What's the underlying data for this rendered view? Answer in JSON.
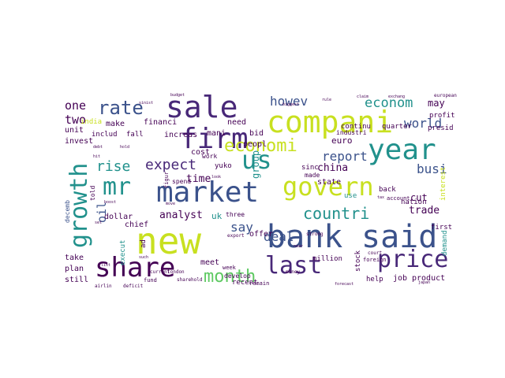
{
  "palette": {
    "light_yellow": "#c8e020",
    "yellow": "#dde318",
    "green": "#5ec962",
    "teal": "#21918c",
    "blue": "#3b528b",
    "deep_blue": "#31446b",
    "dark_purple": "#440154",
    "purple": "#482878"
  },
  "words": [
    {
      "text": "new",
      "size": 46,
      "color": "#c8e020"
    },
    {
      "text": "bank",
      "size": 40,
      "color": "#3b528b"
    },
    {
      "text": "said",
      "size": 40,
      "color": "#3b528b"
    },
    {
      "text": "share",
      "size": 34,
      "color": "#440154"
    },
    {
      "text": "compani",
      "size": 38,
      "color": "#c8e020"
    },
    {
      "text": "sale",
      "size": 38,
      "color": "#482878"
    },
    {
      "text": "firm",
      "size": 36,
      "color": "#482878"
    },
    {
      "text": "market",
      "size": 36,
      "color": "#3b528b"
    },
    {
      "text": "year",
      "size": 36,
      "color": "#21918c"
    },
    {
      "text": "govern",
      "size": 32,
      "color": "#c8e020"
    },
    {
      "text": "us",
      "size": 32,
      "color": "#21918c"
    },
    {
      "text": "price",
      "size": 30,
      "color": "#482878"
    },
    {
      "text": "last",
      "size": 30,
      "color": "#482878"
    },
    {
      "text": "growth",
      "size": 30,
      "color": "#21918c"
    },
    {
      "text": "mr",
      "size": 30,
      "color": "#21918c"
    },
    {
      "text": "month",
      "size": 22,
      "color": "#5ec962"
    },
    {
      "text": "rate",
      "size": 24,
      "color": "#3b528b"
    },
    {
      "text": "economi",
      "size": 22,
      "color": "#c8e020"
    },
    {
      "text": "countri",
      "size": 20,
      "color": "#21918c"
    },
    {
      "text": "expect",
      "size": 18,
      "color": "#482878"
    },
    {
      "text": "rise",
      "size": 18,
      "color": "#21918c"
    },
    {
      "text": "econom",
      "size": 17,
      "color": "#21918c"
    },
    {
      "text": "howev",
      "size": 16,
      "color": "#3b528b"
    },
    {
      "text": "report",
      "size": 16,
      "color": "#3b528b"
    },
    {
      "text": "world",
      "size": 16,
      "color": "#3b528b"
    },
    {
      "text": "deal",
      "size": 16,
      "color": "#3b528b"
    },
    {
      "text": "say",
      "size": 16,
      "color": "#3b528b"
    },
    {
      "text": "busi",
      "size": 16,
      "color": "#3b528b"
    },
    {
      "text": "one",
      "size": 15,
      "color": "#440154"
    },
    {
      "text": "two",
      "size": 15,
      "color": "#440154"
    },
    {
      "text": "may",
      "size": 12,
      "color": "#440154"
    },
    {
      "text": "oil",
      "size": 15,
      "color": "#3b528b"
    },
    {
      "text": "analyst",
      "size": 13,
      "color": "#440154"
    },
    {
      "text": "time",
      "size": 13,
      "color": "#440154"
    },
    {
      "text": "china",
      "size": 13,
      "color": "#440154"
    },
    {
      "text": "trade",
      "size": 13,
      "color": "#440154"
    },
    {
      "text": "group",
      "size": 12,
      "color": "#21918c"
    },
    {
      "text": "cut",
      "size": 12,
      "color": "#440154"
    },
    {
      "text": "uk",
      "size": 11,
      "color": "#21918c"
    },
    {
      "text": "euro",
      "size": 11,
      "color": "#440154"
    },
    {
      "text": "need",
      "size": 10,
      "color": "#440154"
    },
    {
      "text": "bid",
      "size": 10,
      "color": "#440154"
    },
    {
      "text": "financi",
      "size": 10,
      "color": "#440154"
    },
    {
      "text": "make",
      "size": 10,
      "color": "#440154"
    },
    {
      "text": "mani",
      "size": 10,
      "color": "#440154"
    },
    {
      "text": "increas",
      "size": 10,
      "color": "#440154"
    },
    {
      "text": "peopl",
      "size": 10,
      "color": "#440154"
    },
    {
      "text": "cost",
      "size": 10,
      "color": "#440154"
    },
    {
      "text": "unit",
      "size": 10,
      "color": "#440154"
    },
    {
      "text": "invest",
      "size": 10,
      "color": "#440154"
    },
    {
      "text": "includ",
      "size": 9,
      "color": "#440154"
    },
    {
      "text": "fall",
      "size": 9,
      "color": "#440154"
    },
    {
      "text": "sinc",
      "size": 9,
      "color": "#440154"
    },
    {
      "text": "state",
      "size": 10,
      "color": "#440154"
    },
    {
      "text": "yuko",
      "size": 9,
      "color": "#440154"
    },
    {
      "text": "offer",
      "size": 10,
      "color": "#440154"
    },
    {
      "text": "chief",
      "size": 10,
      "color": "#440154"
    },
    {
      "text": "dollar",
      "size": 10,
      "color": "#440154"
    },
    {
      "text": "take",
      "size": 10,
      "color": "#440154"
    },
    {
      "text": "plan",
      "size": 10,
      "color": "#440154"
    },
    {
      "text": "still",
      "size": 10,
      "color": "#440154"
    },
    {
      "text": "meet",
      "size": 10,
      "color": "#440154"
    },
    {
      "text": "recent",
      "size": 9,
      "color": "#440154"
    },
    {
      "text": "job",
      "size": 10,
      "color": "#440154"
    },
    {
      "text": "product",
      "size": 10,
      "color": "#440154"
    },
    {
      "text": "million",
      "size": 9,
      "color": "#440154"
    },
    {
      "text": "stock",
      "size": 9,
      "color": "#440154"
    },
    {
      "text": "help",
      "size": 9,
      "color": "#440154"
    },
    {
      "text": "profit",
      "size": 9,
      "color": "#440154"
    },
    {
      "text": "presid",
      "size": 9,
      "color": "#440154"
    },
    {
      "text": "quarter",
      "size": 9,
      "color": "#440154"
    },
    {
      "text": "first",
      "size": 9,
      "color": "#440154"
    },
    {
      "text": "nation",
      "size": 9,
      "color": "#440154"
    },
    {
      "text": "back",
      "size": 9,
      "color": "#440154"
    },
    {
      "text": "industri",
      "size": 8,
      "color": "#440154"
    },
    {
      "text": "continu",
      "size": 9,
      "color": "#440154"
    },
    {
      "text": "india",
      "size": 9,
      "color": "#c8e020"
    },
    {
      "text": "use",
      "size": 9,
      "color": "#21918c"
    },
    {
      "text": "interest",
      "size": 9,
      "color": "#c8e020"
    },
    {
      "text": "demand",
      "size": 9,
      "color": "#21918c"
    },
    {
      "text": "execut",
      "size": 9,
      "color": "#21918c"
    },
    {
      "text": "ad",
      "size": 9,
      "color": "#440154"
    },
    {
      "text": "told",
      "size": 8,
      "color": "#440154"
    },
    {
      "text": "decemb",
      "size": 8,
      "color": "#3b528b"
    },
    {
      "text": "three",
      "size": 8,
      "color": "#440154"
    },
    {
      "text": "work",
      "size": 8,
      "color": "#440154"
    },
    {
      "text": "spend",
      "size": 8,
      "color": "#440154"
    },
    {
      "text": "develop",
      "size": 8,
      "color": "#440154"
    },
    {
      "text": "made",
      "size": 8,
      "color": "#440154"
    },
    {
      "text": "foreign",
      "size": 7,
      "color": "#440154"
    },
    {
      "text": "account",
      "size": 7,
      "color": "#440154"
    },
    {
      "text": "london",
      "size": 6,
      "color": "#440154"
    },
    {
      "text": "week",
      "size": 7,
      "color": "#440154"
    },
    {
      "text": "money",
      "size": 6,
      "color": "#440154"
    },
    {
      "text": "current",
      "size": 6,
      "color": "#440154"
    },
    {
      "text": "fund",
      "size": 7,
      "color": "#440154"
    },
    {
      "text": "sharehold",
      "size": 6,
      "color": "#440154"
    },
    {
      "text": "remain",
      "size": 7,
      "color": "#440154"
    },
    {
      "text": "airlin",
      "size": 6,
      "color": "#440154"
    },
    {
      "text": "deficit",
      "size": 6,
      "color": "#440154"
    },
    {
      "text": "strong",
      "size": 6,
      "color": "#440154"
    },
    {
      "text": "export",
      "size": 6,
      "color": "#440154"
    },
    {
      "text": "court",
      "size": 6,
      "color": "#440154"
    },
    {
      "text": "european",
      "size": 6,
      "color": "#440154"
    },
    {
      "text": "budget",
      "size": 5,
      "color": "#440154"
    },
    {
      "text": "biggest",
      "size": 5,
      "color": "#440154"
    },
    {
      "text": "rule",
      "size": 5,
      "color": "#440154"
    },
    {
      "text": "claim",
      "size": 5,
      "color": "#440154"
    },
    {
      "text": "hold",
      "size": 5,
      "color": "#440154"
    },
    {
      "text": "debt",
      "size": 5,
      "color": "#440154"
    },
    {
      "text": "hit",
      "size": 5,
      "color": "#440154"
    },
    {
      "text": "look",
      "size": 5,
      "color": "#440154"
    },
    {
      "text": "set",
      "size": 5,
      "color": "#440154"
    },
    {
      "text": "boost",
      "size": 5,
      "color": "#440154"
    },
    {
      "text": "move",
      "size": 5,
      "color": "#440154"
    },
    {
      "text": "list",
      "size": 5,
      "color": "#440154"
    },
    {
      "text": "tax",
      "size": 5,
      "color": "#440154"
    },
    {
      "text": "such",
      "size": 5,
      "color": "#440154"
    },
    {
      "text": "figur",
      "size": 7,
      "color": "#440154"
    },
    {
      "text": "near",
      "size": 5,
      "color": "#440154"
    },
    {
      "text": "sinist",
      "size": 5,
      "color": "#440154"
    },
    {
      "text": "japan",
      "size": 5,
      "color": "#440154"
    },
    {
      "text": "exchang",
      "size": 5,
      "color": "#440154"
    },
    {
      "text": "forecast",
      "size": 5,
      "color": "#440154"
    }
  ]
}
